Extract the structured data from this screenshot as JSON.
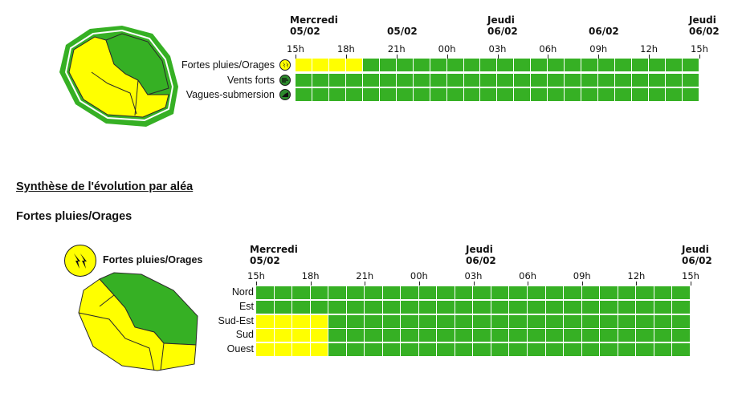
{
  "colors": {
    "green": "#36b024",
    "yellow": "#ffff00",
    "dark": "#1b1b1b"
  },
  "top": {
    "days": [
      {
        "name": "Mercredi",
        "date": "05/02"
      },
      {
        "name": "",
        "date": "05/02"
      },
      {
        "name": "Jeudi",
        "date": "06/02"
      },
      {
        "name": "",
        "date": "06/02"
      },
      {
        "name": "Jeudi",
        "date": "06/02"
      }
    ],
    "ticks": [
      "15h",
      "18h",
      "21h",
      "00h",
      "03h",
      "06h",
      "09h",
      "12h",
      "15h"
    ],
    "rows": [
      {
        "label": "Fortes pluies/Orages",
        "icon": "thunderstorm-icon",
        "levels": [
          "yellow",
          "yellow",
          "yellow",
          "yellow",
          "green",
          "green",
          "green",
          "green",
          "green",
          "green",
          "green",
          "green",
          "green",
          "green",
          "green",
          "green",
          "green",
          "green",
          "green",
          "green",
          "green",
          "green",
          "green",
          "green"
        ]
      },
      {
        "label": "Vents forts",
        "icon": "wind-icon",
        "levels": [
          "green",
          "green",
          "green",
          "green",
          "green",
          "green",
          "green",
          "green",
          "green",
          "green",
          "green",
          "green",
          "green",
          "green",
          "green",
          "green",
          "green",
          "green",
          "green",
          "green",
          "green",
          "green",
          "green",
          "green"
        ]
      },
      {
        "label": "Vagues-submersion",
        "icon": "waves-icon",
        "levels": [
          "green",
          "green",
          "green",
          "green",
          "green",
          "green",
          "green",
          "green",
          "green",
          "green",
          "green",
          "green",
          "green",
          "green",
          "green",
          "green",
          "green",
          "green",
          "green",
          "green",
          "green",
          "green",
          "green",
          "green"
        ]
      }
    ]
  },
  "synthesis": {
    "title": "Synthèse de l'évolution par aléa",
    "hazard_title": "Fortes pluies/Orages",
    "legend_label": "Fortes pluies/Orages",
    "days": [
      {
        "name": "Mercredi",
        "date": "05/02"
      },
      {
        "name": "Jeudi",
        "date": "06/02"
      },
      {
        "name": "Jeudi",
        "date": "06/02"
      }
    ],
    "ticks": [
      "15h",
      "18h",
      "21h",
      "00h",
      "03h",
      "06h",
      "09h",
      "12h",
      "15h"
    ],
    "rows": [
      {
        "label": "Nord",
        "levels": [
          "green",
          "green",
          "green",
          "green",
          "green",
          "green",
          "green",
          "green",
          "green",
          "green",
          "green",
          "green",
          "green",
          "green",
          "green",
          "green",
          "green",
          "green",
          "green",
          "green",
          "green",
          "green",
          "green",
          "green"
        ]
      },
      {
        "label": "Est",
        "levels": [
          "green",
          "green",
          "green",
          "green",
          "green",
          "green",
          "green",
          "green",
          "green",
          "green",
          "green",
          "green",
          "green",
          "green",
          "green",
          "green",
          "green",
          "green",
          "green",
          "green",
          "green",
          "green",
          "green",
          "green"
        ]
      },
      {
        "label": "Sud-Est",
        "levels": [
          "yellow",
          "yellow",
          "yellow",
          "yellow",
          "green",
          "green",
          "green",
          "green",
          "green",
          "green",
          "green",
          "green",
          "green",
          "green",
          "green",
          "green",
          "green",
          "green",
          "green",
          "green",
          "green",
          "green",
          "green",
          "green"
        ]
      },
      {
        "label": "Sud",
        "levels": [
          "yellow",
          "yellow",
          "yellow",
          "yellow",
          "green",
          "green",
          "green",
          "green",
          "green",
          "green",
          "green",
          "green",
          "green",
          "green",
          "green",
          "green",
          "green",
          "green",
          "green",
          "green",
          "green",
          "green",
          "green",
          "green"
        ]
      },
      {
        "label": "Ouest",
        "levels": [
          "yellow",
          "yellow",
          "yellow",
          "yellow",
          "green",
          "green",
          "green",
          "green",
          "green",
          "green",
          "green",
          "green",
          "green",
          "green",
          "green",
          "green",
          "green",
          "green",
          "green",
          "green",
          "green",
          "green",
          "green",
          "green"
        ]
      }
    ]
  }
}
